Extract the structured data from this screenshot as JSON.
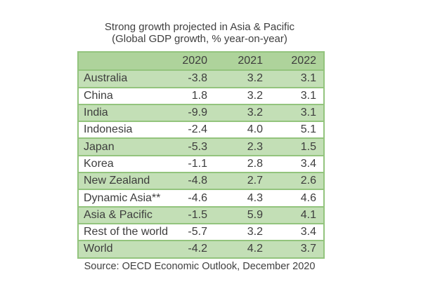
{
  "chart_data": {
    "type": "table",
    "title": "Strong growth projected in Asia & Pacific",
    "subtitle": "(Global GDP growth, % year-on-year)",
    "columns": [
      "2020",
      "2021",
      "2022"
    ],
    "rows": [
      {
        "label": "Australia",
        "values": [
          "-3.8",
          "3.2",
          "3.1"
        ]
      },
      {
        "label": "China",
        "values": [
          "1.8",
          "3.2",
          "3.1"
        ]
      },
      {
        "label": "India",
        "values": [
          "-9.9",
          "3.2",
          "3.1"
        ]
      },
      {
        "label": "Indonesia",
        "values": [
          "-2.4",
          "4.0",
          "5.1"
        ]
      },
      {
        "label": "Japan",
        "values": [
          "-5.3",
          "2.3",
          "1.5"
        ]
      },
      {
        "label": "Korea",
        "values": [
          "-1.1",
          "2.8",
          "3.4"
        ]
      },
      {
        "label": "New Zealand",
        "values": [
          "-4.8",
          "2.7",
          "2.6"
        ]
      },
      {
        "label": "Dynamic Asia**",
        "values": [
          "-4.6",
          "4.3",
          "4.6"
        ]
      },
      {
        "label": "Asia & Pacific",
        "values": [
          "-1.5",
          "5.9",
          "4.1"
        ]
      },
      {
        "label": "Rest of the world",
        "values": [
          "-5.7",
          "3.2",
          "3.4"
        ]
      },
      {
        "label": "World",
        "values": [
          "-4.2",
          "4.2",
          "3.7"
        ]
      }
    ],
    "source": "Source: OECD Economic Outlook, December 2020",
    "colors": {
      "header": "#aed39b",
      "band": "#c3dfb6",
      "border": "#93c47d",
      "text": "#3d3d3d"
    }
  }
}
